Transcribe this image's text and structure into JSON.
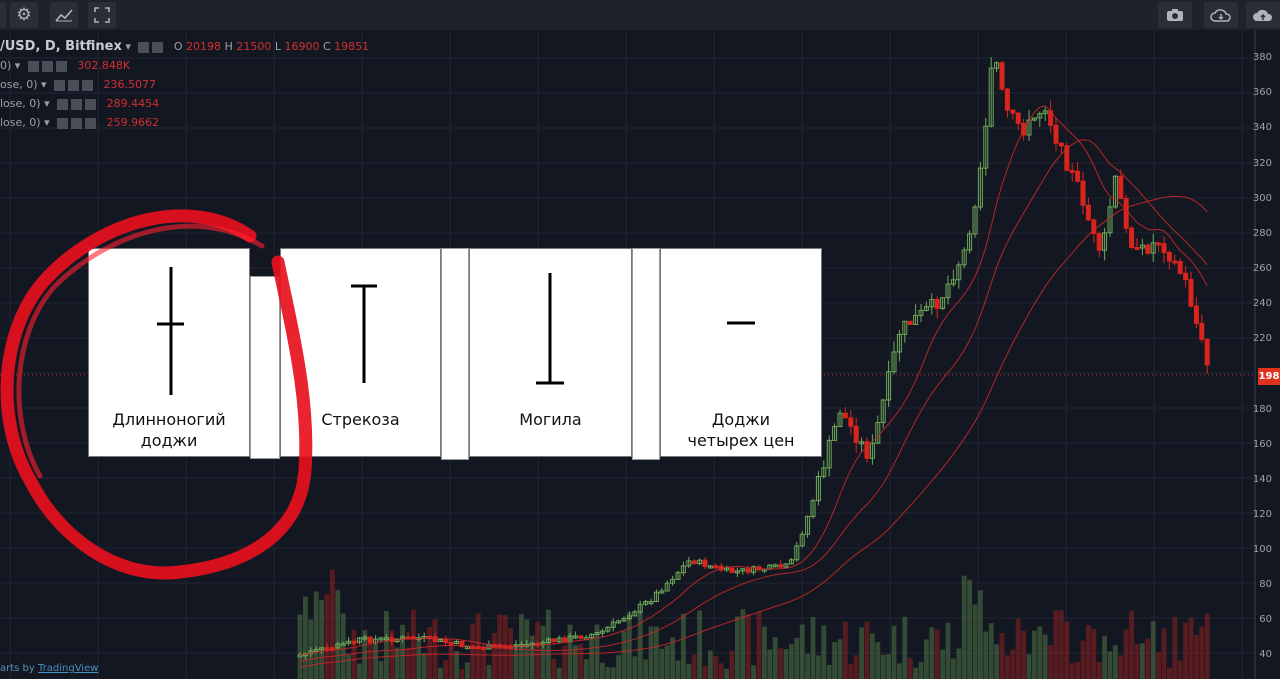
{
  "toolbar": {
    "left_icons": [
      "gear-icon",
      "indicators-icon",
      "fullscreen-icon"
    ],
    "right_icons": [
      "camera-icon",
      "cloud-save-icon",
      "publish-icon"
    ]
  },
  "legend": {
    "symbol": "/USD, D, Bitfinex",
    "o_label": "O",
    "o_value": "20198",
    "h_label": "H",
    "h_value": "21500",
    "l_label": "L",
    "l_value": "16900",
    "c_label": "C",
    "c_value": "19851",
    "indicators": [
      {
        "label": "0)",
        "value": "302.848K"
      },
      {
        "label": "ose, 0)",
        "value": "236.5077"
      },
      {
        "label": "lose, 0)",
        "value": "289.4454"
      },
      {
        "label": "lose, 0)",
        "value": "259.9662"
      }
    ]
  },
  "price_axis": {
    "ticks": [
      "380",
      "360",
      "340",
      "320",
      "300",
      "280",
      "260",
      "240",
      "220",
      "180",
      "160",
      "140",
      "120",
      "100",
      "80",
      "60",
      "40"
    ],
    "last_price": "198"
  },
  "cards": [
    {
      "line1": "Длинноногий",
      "line2": "доджи"
    },
    {
      "line1": "Стрекоза",
      "line2": ""
    },
    {
      "line1": "Могила",
      "line2": ""
    },
    {
      "line1": "Доджи",
      "line2": "четырех цен"
    }
  ],
  "attribution": {
    "prefix": "arts by ",
    "link": "TradingView"
  },
  "colors": {
    "background": "#131722",
    "up_candle": "#6fa85a",
    "down_candle": "#d9251d",
    "ma_line": "#c62828",
    "annotation_circle": "#e8101e"
  }
}
